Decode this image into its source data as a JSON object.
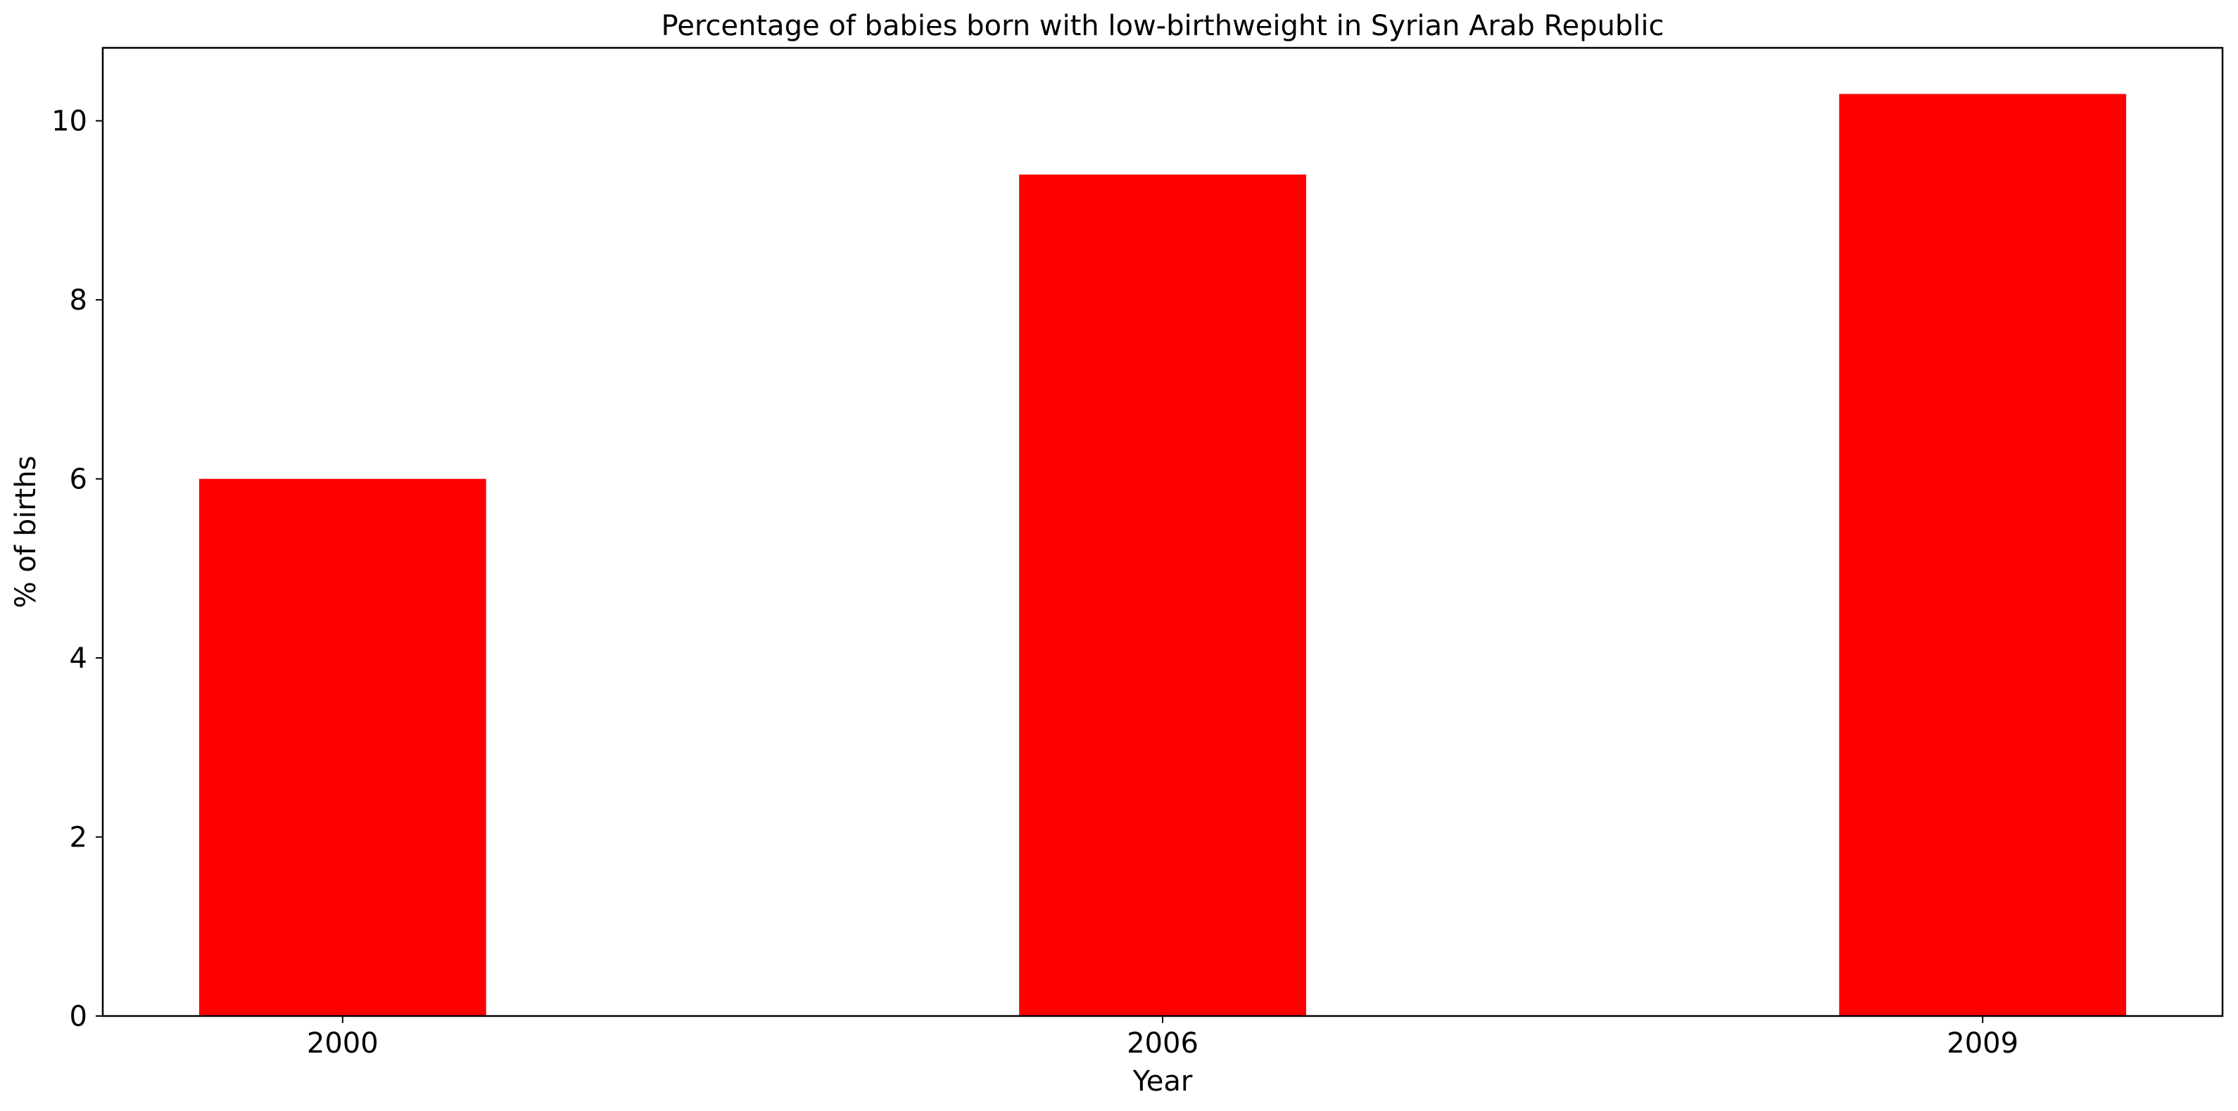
{
  "chart_data": {
    "type": "bar",
    "title": "Percentage of babies born with low-birthweight in Syrian Arab Republic",
    "xlabel": "Year",
    "ylabel": "% of births",
    "categories": [
      "2000",
      "2006",
      "2009"
    ],
    "values": [
      6.0,
      9.4,
      10.3
    ],
    "ylim": [
      0,
      10.815
    ],
    "yticks": [
      0,
      2,
      4,
      6,
      8,
      10
    ],
    "grid": false,
    "legend": "none",
    "bar_color": "#ff0000"
  }
}
